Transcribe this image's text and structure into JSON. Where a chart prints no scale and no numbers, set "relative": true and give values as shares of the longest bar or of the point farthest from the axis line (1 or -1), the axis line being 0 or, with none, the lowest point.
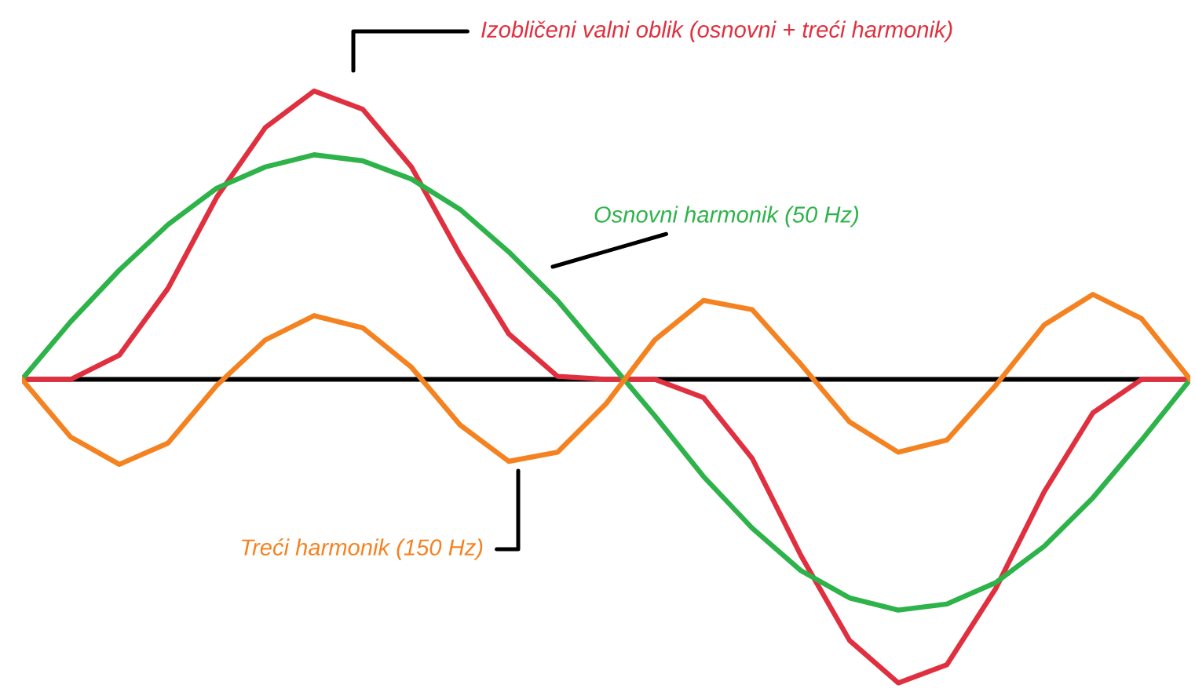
{
  "chart_data": {
    "type": "line",
    "relative": true,
    "legend": false,
    "grid": false,
    "marker": "none",
    "line_style": "solid",
    "categories": [
      null,
      null,
      null,
      null,
      null,
      null,
      null,
      null,
      null,
      null,
      null,
      null,
      null,
      null,
      null,
      null,
      null,
      null,
      null,
      null,
      null,
      null,
      null,
      null,
      null
    ],
    "series": [
      {
        "name": "Izobličeni valni oblik (osnovni + treći harmonik)",
        "color": "#e0303f",
        "values": [
          0,
          0,
          0.08,
          0.3,
          0.6,
          0.83,
          0.95,
          0.89,
          0.7,
          0.41,
          0.15,
          0.01,
          0,
          0,
          -0.06,
          -0.26,
          -0.58,
          -0.86,
          -1,
          -0.94,
          -0.69,
          -0.37,
          -0.11,
          0,
          0
        ]
      },
      {
        "name": "Osnovni harmonik (50 Hz)",
        "color": "#2db34a",
        "values": [
          0,
          0.19,
          0.36,
          0.51,
          0.63,
          0.7,
          0.74,
          0.72,
          0.66,
          0.56,
          0.42,
          0.26,
          0.07,
          -0.12,
          -0.32,
          -0.49,
          -0.63,
          -0.72,
          -0.76,
          -0.74,
          -0.67,
          -0.55,
          -0.39,
          -0.2,
          0
        ]
      },
      {
        "name": "Treći harmonik (150 Hz)",
        "color": "#f58220",
        "values": [
          0,
          -0.19,
          -0.28,
          -0.21,
          -0.02,
          0.13,
          0.21,
          0.17,
          0.04,
          -0.15,
          -0.27,
          -0.24,
          -0.08,
          0.13,
          0.26,
          0.23,
          0.05,
          -0.14,
          -0.24,
          -0.2,
          -0.02,
          0.18,
          0.28,
          0.2,
          0
        ]
      }
    ]
  }
}
